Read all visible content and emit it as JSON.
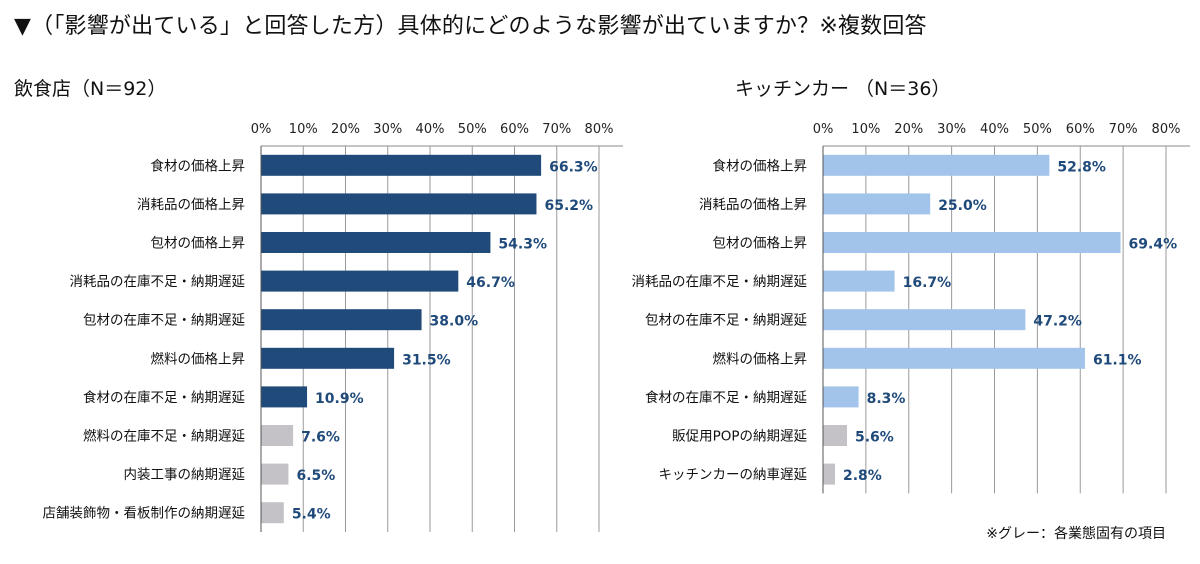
{
  "title": "▼（「影響が出ている」と回答した方）具体的にどのような影響が出ていますか？※複数回答",
  "note": "※グレー：各業態固有の項目",
  "colors": {
    "left_bar": "#1f4a7a",
    "right_bar": "#a3c4ea",
    "specific_bar": "#c4c2c7",
    "value_text": "#1f4a7a",
    "grid": "#9a9a9a"
  },
  "chart_data": [
    {
      "type": "bar",
      "orientation": "horizontal",
      "title": "飲食店（N＝92）",
      "xlim": [
        0,
        80
      ],
      "xticks": [
        "0%",
        "10%",
        "20%",
        "30%",
        "40%",
        "50%",
        "60%",
        "70%",
        "80%"
      ],
      "grid": true,
      "categories": [
        "食材の価格上昇",
        "消耗品の価格上昇",
        "包材の価格上昇",
        "消耗品の在庫不足・納期遅延",
        "包材の在庫不足・納期遅延",
        "燃料の価格上昇",
        "食材の在庫不足・納期遅延",
        "燃料の在庫不足・納期遅延",
        "内装工事の納期遅延",
        "店舗装飾物・看板制作の納期遅延"
      ],
      "values": [
        66.3,
        65.2,
        54.3,
        46.7,
        38.0,
        31.5,
        10.9,
        7.6,
        6.5,
        5.4
      ],
      "labels": [
        "66.3%",
        "65.2%",
        "54.3%",
        "46.7%",
        "38.0%",
        "31.5%",
        "10.9%",
        "7.6%",
        "6.5%",
        "5.4%"
      ],
      "specific": [
        false,
        false,
        false,
        false,
        false,
        false,
        false,
        true,
        true,
        true
      ]
    },
    {
      "type": "bar",
      "orientation": "horizontal",
      "title": "キッチンカー （N＝36）",
      "xlim": [
        0,
        80
      ],
      "xticks": [
        "0%",
        "10%",
        "20%",
        "30%",
        "40%",
        "50%",
        "60%",
        "70%",
        "80%"
      ],
      "grid": true,
      "categories": [
        "食材の価格上昇",
        "消耗品の価格上昇",
        "包材の価格上昇",
        "消耗品の在庫不足・納期遅延",
        "包材の在庫不足・納期遅延",
        "燃料の価格上昇",
        "食材の在庫不足・納期遅延",
        "販促用POPの納期遅延",
        "キッチンカーの納車遅延"
      ],
      "values": [
        52.8,
        25.0,
        69.4,
        16.7,
        47.2,
        61.1,
        8.3,
        5.6,
        2.8
      ],
      "labels": [
        "52.8%",
        "25.0%",
        "69.4%",
        "16.7%",
        "47.2%",
        "61.1%",
        "8.3%",
        "5.6%",
        "2.8%"
      ],
      "specific": [
        false,
        false,
        false,
        false,
        false,
        false,
        false,
        true,
        true
      ]
    }
  ]
}
